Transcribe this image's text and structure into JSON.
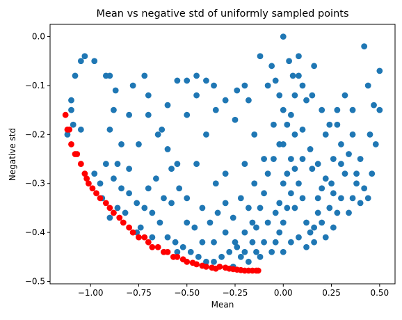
{
  "chart_data": {
    "type": "scatter",
    "title": "Mean vs negative std of uniformly sampled points",
    "xlabel": "Mean",
    "ylabel": "Negative std",
    "xlim": [
      -1.21,
      0.58
    ],
    "ylim": [
      -0.505,
      0.025
    ],
    "xticks": [
      -1.0,
      -0.75,
      -0.5,
      -0.25,
      0.0,
      0.25,
      0.5
    ],
    "xtick_labels": [
      "−1.00",
      "−0.75",
      "−0.50",
      "−0.25",
      "0.00",
      "0.25",
      "0.50"
    ],
    "yticks": [
      0.0,
      -0.1,
      -0.2,
      -0.3,
      -0.4,
      -0.5
    ],
    "ytick_labels": [
      "0.0",
      "−0.1",
      "−0.2",
      "−0.3",
      "−0.4",
      "−0.5"
    ],
    "grid": false,
    "legend": "none",
    "series": [
      {
        "color": "#1f77b4",
        "points": [
          [
            -1.1,
            -0.13
          ],
          [
            -1.08,
            -0.08
          ],
          [
            -1.05,
            -0.05
          ],
          [
            -1.03,
            -0.04
          ],
          [
            -0.98,
            -0.05
          ],
          [
            -0.92,
            -0.08
          ],
          [
            -0.9,
            -0.08
          ],
          [
            -0.87,
            -0.11
          ],
          [
            -1.1,
            -0.15
          ],
          [
            -1.12,
            -0.2
          ],
          [
            -1.09,
            -0.18
          ],
          [
            -1.05,
            -0.19
          ],
          [
            -0.98,
            -0.28
          ],
          [
            -0.95,
            -0.3
          ],
          [
            -0.92,
            -0.26
          ],
          [
            -0.86,
            -0.26
          ],
          [
            -0.9,
            -0.19
          ],
          [
            -0.88,
            -0.15
          ],
          [
            -0.84,
            -0.22
          ],
          [
            -0.8,
            -0.16
          ],
          [
            -0.78,
            -0.1
          ],
          [
            -0.72,
            -0.08
          ],
          [
            -0.7,
            -0.12
          ],
          [
            -0.63,
            -0.19
          ],
          [
            -0.6,
            -0.14
          ],
          [
            -0.55,
            -0.09
          ],
          [
            -0.5,
            -0.09
          ],
          [
            -0.45,
            -0.08
          ],
          [
            -0.4,
            -0.09
          ],
          [
            -0.36,
            -0.1
          ],
          [
            -0.3,
            -0.13
          ],
          [
            -0.24,
            -0.11
          ],
          [
            -0.2,
            -0.1
          ],
          [
            -0.18,
            -0.13
          ],
          [
            -0.12,
            -0.04
          ],
          [
            -0.08,
            -0.1
          ],
          [
            -0.04,
            -0.09
          ],
          [
            -0.02,
            -0.12
          ],
          [
            0.0,
            0.0
          ],
          [
            0.03,
            -0.05
          ],
          [
            0.05,
            -0.08
          ],
          [
            0.08,
            -0.04
          ],
          [
            0.1,
            -0.1
          ],
          [
            0.12,
            -0.13
          ],
          [
            0.15,
            -0.12
          ],
          [
            0.2,
            -0.15
          ],
          [
            0.24,
            -0.18
          ],
          [
            0.28,
            -0.15
          ],
          [
            0.32,
            -0.12
          ],
          [
            0.36,
            -0.15
          ],
          [
            0.42,
            -0.02
          ],
          [
            0.44,
            -0.1
          ],
          [
            0.47,
            -0.14
          ],
          [
            0.5,
            -0.07
          ],
          [
            0.5,
            -0.15
          ],
          [
            0.45,
            -0.2
          ],
          [
            0.4,
            -0.25
          ],
          [
            0.48,
            -0.22
          ],
          [
            0.46,
            -0.28
          ],
          [
            0.38,
            -0.3
          ],
          [
            0.32,
            -0.28
          ],
          [
            0.3,
            -0.22
          ],
          [
            0.26,
            -0.25
          ],
          [
            0.22,
            -0.2
          ],
          [
            0.18,
            -0.26
          ],
          [
            0.14,
            -0.23
          ],
          [
            0.1,
            -0.19
          ],
          [
            0.06,
            -0.2
          ],
          [
            0.02,
            -0.18
          ],
          [
            -0.02,
            -0.22
          ],
          [
            -0.05,
            -0.25
          ],
          [
            -0.08,
            -0.28
          ],
          [
            -0.1,
            -0.32
          ],
          [
            -0.12,
            -0.35
          ],
          [
            -0.16,
            -0.38
          ],
          [
            -0.2,
            -0.4
          ],
          [
            -0.25,
            -0.42
          ],
          [
            -0.28,
            -0.44
          ],
          [
            -0.32,
            -0.45
          ],
          [
            -0.36,
            -0.46
          ],
          [
            -0.4,
            -0.46
          ],
          [
            -0.44,
            -0.45
          ],
          [
            -0.48,
            -0.44
          ],
          [
            -0.52,
            -0.43
          ],
          [
            -0.56,
            -0.42
          ],
          [
            -0.6,
            -0.41
          ],
          [
            -0.64,
            -0.38
          ],
          [
            -0.68,
            -0.36
          ],
          [
            -0.72,
            -0.35
          ],
          [
            -0.76,
            -0.34
          ],
          [
            -0.8,
            -0.32
          ],
          [
            -0.84,
            -0.31
          ],
          [
            -0.88,
            -0.29
          ],
          [
            -0.94,
            -0.33
          ],
          [
            -0.9,
            -0.37
          ],
          [
            -0.82,
            -0.36
          ],
          [
            -0.76,
            -0.4
          ],
          [
            -0.7,
            -0.31
          ],
          [
            -0.66,
            -0.29
          ],
          [
            -0.62,
            -0.33
          ],
          [
            -0.58,
            -0.34
          ],
          [
            -0.54,
            -0.31
          ],
          [
            -0.5,
            -0.38
          ],
          [
            -0.46,
            -0.39
          ],
          [
            -0.42,
            -0.35
          ],
          [
            -0.38,
            -0.38
          ],
          [
            -0.34,
            -0.36
          ],
          [
            -0.3,
            -0.34
          ],
          [
            -0.26,
            -0.37
          ],
          [
            -0.22,
            -0.33
          ],
          [
            -0.18,
            -0.35
          ],
          [
            -0.14,
            -0.39
          ],
          [
            -0.1,
            -0.42
          ],
          [
            -0.14,
            -0.44
          ],
          [
            -0.18,
            -0.46
          ],
          [
            -0.22,
            -0.45
          ],
          [
            -0.26,
            -0.47
          ],
          [
            -0.24,
            -0.43
          ],
          [
            -0.2,
            -0.44
          ],
          [
            -0.16,
            -0.42
          ],
          [
            -0.12,
            -0.45
          ],
          [
            -0.08,
            -0.38
          ],
          [
            -0.04,
            -0.36
          ],
          [
            -0.02,
            -0.34
          ],
          [
            0.0,
            -0.3
          ],
          [
            0.02,
            -0.28
          ],
          [
            0.04,
            -0.32
          ],
          [
            0.06,
            -0.35
          ],
          [
            0.08,
            -0.3
          ],
          [
            0.1,
            -0.33
          ],
          [
            0.12,
            -0.38
          ],
          [
            0.14,
            -0.4
          ],
          [
            0.16,
            -0.42
          ],
          [
            0.18,
            -0.36
          ],
          [
            0.2,
            -0.38
          ],
          [
            0.22,
            -0.41
          ],
          [
            0.24,
            -0.35
          ],
          [
            0.26,
            -0.39
          ],
          [
            0.28,
            -0.36
          ],
          [
            0.3,
            -0.33
          ],
          [
            0.34,
            -0.36
          ],
          [
            0.36,
            -0.33
          ],
          [
            0.4,
            -0.34
          ],
          [
            0.42,
            -0.31
          ],
          [
            0.44,
            -0.33
          ],
          [
            0.38,
            -0.28
          ],
          [
            0.34,
            -0.24
          ],
          [
            0.3,
            -0.26
          ],
          [
            0.25,
            -0.3
          ],
          [
            0.2,
            -0.31
          ],
          [
            0.15,
            -0.27
          ],
          [
            0.1,
            -0.25
          ],
          [
            0.06,
            -0.27
          ],
          [
            0.02,
            -0.35
          ],
          [
            0.0,
            -0.38
          ],
          [
            -0.02,
            -0.4
          ],
          [
            -0.04,
            -0.42
          ],
          [
            -0.06,
            -0.44
          ],
          [
            0.0,
            -0.44
          ],
          [
            0.04,
            -0.42
          ],
          [
            0.08,
            -0.41
          ],
          [
            0.12,
            -0.43
          ],
          [
            0.16,
            -0.39
          ],
          [
            0.18,
            -0.33
          ],
          [
            0.22,
            -0.29
          ],
          [
            0.26,
            -0.32
          ],
          [
            0.04,
            -0.25
          ],
          [
            0.0,
            -0.22
          ],
          [
            0.04,
            -0.16
          ],
          [
            0.06,
            -0.12
          ],
          [
            0.0,
            -0.15
          ],
          [
            -0.05,
            -0.18
          ],
          [
            -0.1,
            -0.25
          ],
          [
            -0.15,
            -0.3
          ],
          [
            -0.4,
            -0.2
          ],
          [
            -0.45,
            -0.26
          ],
          [
            -0.55,
            -0.26
          ],
          [
            -0.6,
            -0.23
          ],
          [
            -0.65,
            -0.2
          ],
          [
            -0.7,
            -0.16
          ],
          [
            -0.75,
            -0.22
          ],
          [
            -0.8,
            -0.27
          ],
          [
            -0.35,
            -0.3
          ],
          [
            -0.3,
            -0.28
          ],
          [
            -0.25,
            -0.17
          ],
          [
            -0.5,
            -0.16
          ],
          [
            -0.45,
            -0.12
          ],
          [
            -0.35,
            -0.15
          ],
          [
            -0.15,
            -0.2
          ],
          [
            -0.06,
            -0.06
          ],
          [
            0.08,
            -0.08
          ],
          [
            0.16,
            -0.06
          ],
          [
            -0.2,
            -0.26
          ],
          [
            -0.42,
            -0.42
          ],
          [
            -0.55,
            -0.44
          ],
          [
            -0.62,
            -0.44
          ],
          [
            -0.68,
            -0.41
          ],
          [
            -0.74,
            -0.39
          ],
          [
            -0.86,
            -0.35
          ],
          [
            -0.58,
            -0.27
          ],
          [
            -0.5,
            -0.33
          ],
          [
            -0.3,
            -0.4
          ],
          [
            -0.36,
            -0.42
          ],
          [
            0.28,
            -0.18
          ],
          [
            0.36,
            -0.2
          ]
        ]
      },
      {
        "color": "#ff0000",
        "points": [
          [
            -1.13,
            -0.16
          ],
          [
            -1.12,
            -0.19
          ],
          [
            -1.11,
            -0.19
          ],
          [
            -1.1,
            -0.22
          ],
          [
            -1.08,
            -0.24
          ],
          [
            -1.07,
            -0.24
          ],
          [
            -1.05,
            -0.26
          ],
          [
            -1.03,
            -0.28
          ],
          [
            -1.02,
            -0.29
          ],
          [
            -1.01,
            -0.3
          ],
          [
            -0.99,
            -0.31
          ],
          [
            -0.97,
            -0.32
          ],
          [
            -0.95,
            -0.33
          ],
          [
            -0.92,
            -0.34
          ],
          [
            -0.9,
            -0.35
          ],
          [
            -0.88,
            -0.36
          ],
          [
            -0.85,
            -0.37
          ],
          [
            -0.83,
            -0.38
          ],
          [
            -0.8,
            -0.39
          ],
          [
            -0.78,
            -0.4
          ],
          [
            -0.75,
            -0.41
          ],
          [
            -0.72,
            -0.41
          ],
          [
            -0.7,
            -0.42
          ],
          [
            -0.68,
            -0.43
          ],
          [
            -0.65,
            -0.43
          ],
          [
            -0.62,
            -0.44
          ],
          [
            -0.6,
            -0.44
          ],
          [
            -0.57,
            -0.45
          ],
          [
            -0.55,
            -0.45
          ],
          [
            -0.52,
            -0.455
          ],
          [
            -0.5,
            -0.46
          ],
          [
            -0.47,
            -0.462
          ],
          [
            -0.45,
            -0.465
          ],
          [
            -0.42,
            -0.468
          ],
          [
            -0.4,
            -0.47
          ],
          [
            -0.37,
            -0.472
          ],
          [
            -0.35,
            -0.474
          ],
          [
            -0.33,
            -0.47
          ],
          [
            -0.3,
            -0.472
          ],
          [
            -0.28,
            -0.474
          ],
          [
            -0.26,
            -0.475
          ],
          [
            -0.24,
            -0.476
          ],
          [
            -0.22,
            -0.477
          ],
          [
            -0.2,
            -0.478
          ],
          [
            -0.18,
            -0.478
          ],
          [
            -0.16,
            -0.478
          ],
          [
            -0.14,
            -0.478
          ],
          [
            -0.13,
            -0.478
          ]
        ]
      }
    ]
  }
}
